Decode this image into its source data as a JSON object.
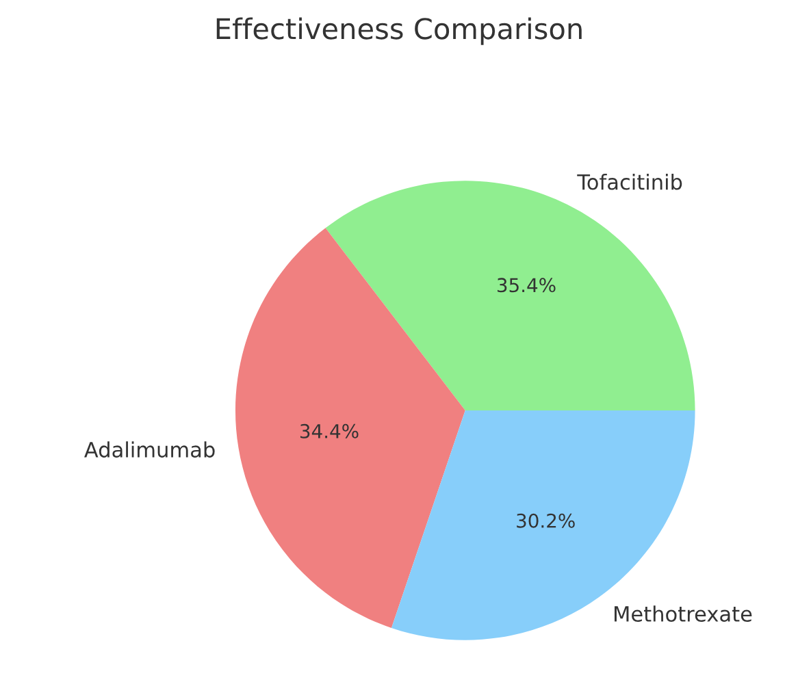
{
  "chart_data": {
    "type": "pie",
    "title": "Effectiveness Comparison",
    "categories": [
      "Tofacitinib",
      "Adalimumab",
      "Methotrexate"
    ],
    "values": [
      35.4,
      34.4,
      30.2
    ],
    "colors": [
      "#90ee90",
      "#f08080",
      "#87cefa"
    ],
    "value_labels": [
      "35.4%",
      "34.4%",
      "30.2%"
    ]
  }
}
